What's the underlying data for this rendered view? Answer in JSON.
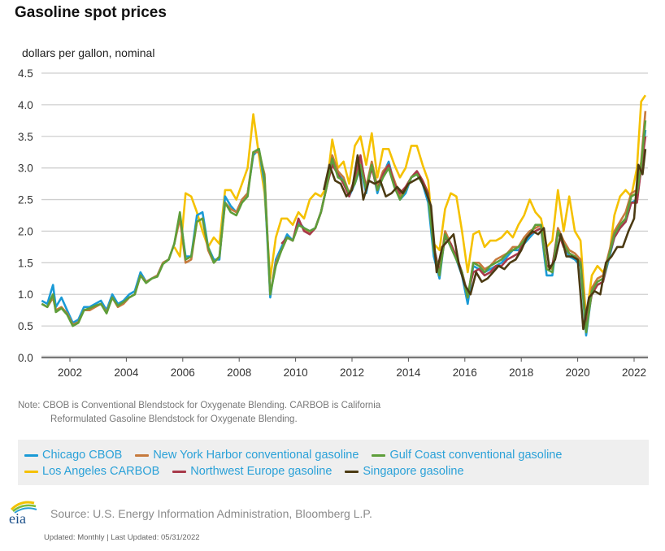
{
  "header": {
    "title": "Gasoline spot prices",
    "units": "dollars per gallon, nominal"
  },
  "note": {
    "line1": "Note: CBOB is Conventional Blendstock for Oxygenate Blending. CARBOB is California",
    "line2": "Reformulated Gasoline Blendstock for Oxygenate Blending."
  },
  "footer": {
    "logo": "eia-logo",
    "source": "Source: U.S. Energy Information Administration, Bloomberg L.P.",
    "updated": "Updated: Monthly | Last Updated: 05/31/2022"
  },
  "chart_data": {
    "type": "line",
    "title": "Gasoline spot prices",
    "xlabel": "",
    "ylabel": "dollars per gallon, nominal",
    "xlim": [
      2001.0,
      2022.45
    ],
    "ylim": [
      0,
      4.5
    ],
    "yticks": [
      "0.0",
      "0.5",
      "1.0",
      "1.5",
      "2.0",
      "2.5",
      "3.0",
      "3.5",
      "4.0",
      "4.5"
    ],
    "xticks": [
      "2002",
      "2004",
      "2006",
      "2008",
      "2010",
      "2012",
      "2014",
      "2016",
      "2018",
      "2020",
      "2022"
    ],
    "grid": true,
    "legend_position": "bottom",
    "series": [
      {
        "name": "Chicago CBOB",
        "color": "#1a9ad6",
        "x": [
          2001.0,
          2001.2,
          2001.4,
          2001.5,
          2001.7,
          2001.9,
          2002.1,
          2002.3,
          2002.5,
          2002.7,
          2002.9,
          2003.1,
          2003.3,
          2003.5,
          2003.7,
          2003.9,
          2004.1,
          2004.3,
          2004.5,
          2004.7,
          2004.9,
          2005.1,
          2005.3,
          2005.5,
          2005.7,
          2005.9,
          2006.1,
          2006.3,
          2006.5,
          2006.7,
          2006.9,
          2007.1,
          2007.3,
          2007.5,
          2007.7,
          2007.9,
          2008.1,
          2008.3,
          2008.5,
          2008.7,
          2008.9,
          2009.1,
          2009.3,
          2009.5,
          2009.7,
          2009.9,
          2010.1,
          2010.3,
          2010.5,
          2010.7,
          2010.9,
          2011.1,
          2011.3,
          2011.5,
          2011.7,
          2011.9,
          2012.1,
          2012.3,
          2012.5,
          2012.7,
          2012.9,
          2013.1,
          2013.3,
          2013.5,
          2013.7,
          2013.9,
          2014.1,
          2014.3,
          2014.5,
          2014.7,
          2014.9,
          2015.1,
          2015.3,
          2015.5,
          2015.7,
          2015.9,
          2016.1,
          2016.3,
          2016.5,
          2016.7,
          2016.9,
          2017.1,
          2017.3,
          2017.5,
          2017.7,
          2017.9,
          2018.1,
          2018.3,
          2018.5,
          2018.7,
          2018.9,
          2019.1,
          2019.3,
          2019.5,
          2019.7,
          2019.9,
          2020.1,
          2020.3,
          2020.5,
          2020.7,
          2020.9,
          2021.1,
          2021.3,
          2021.5,
          2021.7,
          2021.9,
          2022.1,
          2022.25,
          2022.4
        ],
        "values": [
          0.9,
          0.85,
          1.15,
          0.8,
          0.95,
          0.75,
          0.55,
          0.6,
          0.8,
          0.8,
          0.85,
          0.9,
          0.75,
          1.0,
          0.85,
          0.9,
          1.0,
          1.05,
          1.35,
          1.2,
          1.25,
          1.3,
          1.5,
          1.55,
          1.8,
          2.25,
          1.6,
          1.6,
          2.25,
          2.3,
          1.75,
          1.55,
          1.55,
          2.55,
          2.4,
          2.3,
          2.5,
          2.6,
          3.2,
          3.3,
          2.75,
          0.95,
          1.55,
          1.75,
          1.95,
          1.85,
          2.15,
          2.05,
          2.0,
          2.05,
          2.3,
          2.7,
          3.1,
          2.9,
          2.8,
          2.55,
          2.75,
          3.0,
          2.6,
          3.05,
          2.6,
          2.9,
          3.1,
          2.75,
          2.5,
          2.6,
          2.85,
          2.9,
          2.75,
          2.45,
          1.6,
          1.25,
          1.95,
          1.75,
          1.55,
          1.3,
          0.85,
          1.45,
          1.4,
          1.35,
          1.4,
          1.45,
          1.5,
          1.6,
          1.7,
          1.7,
          1.8,
          1.9,
          2.0,
          2.05,
          1.3,
          1.3,
          2.0,
          1.8,
          1.6,
          1.55,
          1.45,
          0.35,
          1.05,
          1.15,
          1.2,
          1.55,
          1.9,
          2.05,
          2.15,
          2.45,
          2.5,
          3.0,
          3.6
        ]
      },
      {
        "name": "New York Harbor conventional gasoline",
        "color": "#c67a3d",
        "x": [
          2001.0,
          2001.2,
          2001.4,
          2001.5,
          2001.7,
          2001.9,
          2002.1,
          2002.3,
          2002.5,
          2002.7,
          2002.9,
          2003.1,
          2003.3,
          2003.5,
          2003.7,
          2003.9,
          2004.1,
          2004.3,
          2004.5,
          2004.7,
          2004.9,
          2005.1,
          2005.3,
          2005.5,
          2005.7,
          2005.9,
          2006.1,
          2006.3,
          2006.5,
          2006.7,
          2006.9,
          2007.1,
          2007.3,
          2007.5,
          2007.7,
          2007.9,
          2008.1,
          2008.3,
          2008.5,
          2008.7,
          2008.9,
          2009.1,
          2009.3,
          2009.5,
          2009.7,
          2009.9,
          2010.1,
          2010.3,
          2010.5,
          2010.7,
          2010.9,
          2011.1,
          2011.3,
          2011.5,
          2011.7,
          2011.9,
          2012.1,
          2012.3,
          2012.5,
          2012.7,
          2012.9,
          2013.1,
          2013.3,
          2013.5,
          2013.7,
          2013.9,
          2014.1,
          2014.3,
          2014.5,
          2014.7,
          2014.9,
          2015.1,
          2015.3,
          2015.5,
          2015.7,
          2015.9,
          2016.1,
          2016.3,
          2016.5,
          2016.7,
          2016.9,
          2017.1,
          2017.3,
          2017.5,
          2017.7,
          2017.9,
          2018.1,
          2018.3,
          2018.5,
          2018.7,
          2018.9,
          2019.1,
          2019.3,
          2019.5,
          2019.7,
          2019.9,
          2020.1,
          2020.3,
          2020.5,
          2020.7,
          2020.9,
          2021.1,
          2021.3,
          2021.5,
          2021.7,
          2021.9,
          2022.1,
          2022.25,
          2022.4
        ],
        "values": [
          0.85,
          0.8,
          0.95,
          0.75,
          0.8,
          0.7,
          0.52,
          0.56,
          0.75,
          0.75,
          0.8,
          0.85,
          0.72,
          0.95,
          0.8,
          0.85,
          0.95,
          1.0,
          1.3,
          1.2,
          1.25,
          1.3,
          1.5,
          1.55,
          1.8,
          2.2,
          1.5,
          1.55,
          2.15,
          2.2,
          1.7,
          1.5,
          1.6,
          2.45,
          2.35,
          2.3,
          2.5,
          2.6,
          3.25,
          3.25,
          2.9,
          1.0,
          1.5,
          1.7,
          1.9,
          1.85,
          2.1,
          2.05,
          1.95,
          2.05,
          2.3,
          2.7,
          3.2,
          2.95,
          2.85,
          2.6,
          2.8,
          3.15,
          2.7,
          3.1,
          2.7,
          2.95,
          3.05,
          2.8,
          2.55,
          2.65,
          2.85,
          2.95,
          2.8,
          2.6,
          1.75,
          1.35,
          2.0,
          1.8,
          1.6,
          1.35,
          0.95,
          1.5,
          1.5,
          1.4,
          1.45,
          1.55,
          1.6,
          1.65,
          1.75,
          1.75,
          1.9,
          2.0,
          2.05,
          2.1,
          1.45,
          1.4,
          2.05,
          1.85,
          1.7,
          1.65,
          1.55,
          0.45,
          1.1,
          1.25,
          1.3,
          1.65,
          2.0,
          2.15,
          2.3,
          2.6,
          2.65,
          3.1,
          3.9
        ]
      },
      {
        "name": "Gulf Coast conventional gasoline",
        "color": "#5e9e3a",
        "x": [
          2001.0,
          2001.2,
          2001.4,
          2001.5,
          2001.7,
          2001.9,
          2002.1,
          2002.3,
          2002.5,
          2002.7,
          2002.9,
          2003.1,
          2003.3,
          2003.5,
          2003.7,
          2003.9,
          2004.1,
          2004.3,
          2004.5,
          2004.7,
          2004.9,
          2005.1,
          2005.3,
          2005.5,
          2005.7,
          2005.9,
          2006.1,
          2006.3,
          2006.5,
          2006.7,
          2006.9,
          2007.1,
          2007.3,
          2007.5,
          2007.7,
          2007.9,
          2008.1,
          2008.3,
          2008.5,
          2008.7,
          2008.9,
          2009.1,
          2009.3,
          2009.5,
          2009.7,
          2009.9,
          2010.1,
          2010.3,
          2010.5,
          2010.7,
          2010.9,
          2011.1,
          2011.3,
          2011.5,
          2011.7,
          2011.9,
          2012.1,
          2012.3,
          2012.5,
          2012.7,
          2012.9,
          2013.1,
          2013.3,
          2013.5,
          2013.7,
          2013.9,
          2014.1,
          2014.3,
          2014.5,
          2014.7,
          2014.9,
          2015.1,
          2015.3,
          2015.5,
          2015.7,
          2015.9,
          2016.1,
          2016.3,
          2016.5,
          2016.7,
          2016.9,
          2017.1,
          2017.3,
          2017.5,
          2017.7,
          2017.9,
          2018.1,
          2018.3,
          2018.5,
          2018.7,
          2018.9,
          2019.1,
          2019.3,
          2019.5,
          2019.7,
          2019.9,
          2020.1,
          2020.3,
          2020.5,
          2020.7,
          2020.9,
          2021.1,
          2021.3,
          2021.5,
          2021.7,
          2021.9,
          2022.1,
          2022.25,
          2022.4
        ],
        "values": [
          0.85,
          0.8,
          1.0,
          0.72,
          0.78,
          0.68,
          0.5,
          0.55,
          0.75,
          0.78,
          0.82,
          0.85,
          0.7,
          0.95,
          0.82,
          0.88,
          0.95,
          1.0,
          1.3,
          1.18,
          1.25,
          1.28,
          1.48,
          1.55,
          1.8,
          2.3,
          1.55,
          1.6,
          2.15,
          2.2,
          1.75,
          1.5,
          1.6,
          2.45,
          2.3,
          2.25,
          2.45,
          2.55,
          3.25,
          3.3,
          2.85,
          1.0,
          1.45,
          1.7,
          1.9,
          1.85,
          2.1,
          2.05,
          2.0,
          2.05,
          2.3,
          2.7,
          3.15,
          2.85,
          2.8,
          2.6,
          2.75,
          3.05,
          2.65,
          3.05,
          2.65,
          2.85,
          3.0,
          2.7,
          2.5,
          2.65,
          2.85,
          2.9,
          2.75,
          2.55,
          1.7,
          1.3,
          1.95,
          1.75,
          1.55,
          1.35,
          0.95,
          1.5,
          1.45,
          1.35,
          1.45,
          1.5,
          1.55,
          1.65,
          1.7,
          1.75,
          1.85,
          1.95,
          2.1,
          2.1,
          1.4,
          1.35,
          2.0,
          1.8,
          1.65,
          1.6,
          1.5,
          0.4,
          1.05,
          1.2,
          1.25,
          1.6,
          1.95,
          2.1,
          2.2,
          2.55,
          2.6,
          3.05,
          3.75
        ]
      },
      {
        "name": "Los Angeles CARBOB",
        "color": "#f5c100",
        "x": [
          2005.7,
          2005.9,
          2006.1,
          2006.3,
          2006.5,
          2006.7,
          2006.9,
          2007.1,
          2007.3,
          2007.5,
          2007.7,
          2007.9,
          2008.1,
          2008.3,
          2008.5,
          2008.7,
          2008.9,
          2009.1,
          2009.3,
          2009.5,
          2009.7,
          2009.9,
          2010.1,
          2010.3,
          2010.5,
          2010.7,
          2010.9,
          2011.1,
          2011.3,
          2011.5,
          2011.7,
          2011.9,
          2012.1,
          2012.3,
          2012.5,
          2012.7,
          2012.9,
          2013.1,
          2013.3,
          2013.5,
          2013.7,
          2013.9,
          2014.1,
          2014.3,
          2014.5,
          2014.7,
          2014.9,
          2015.1,
          2015.3,
          2015.5,
          2015.7,
          2015.9,
          2016.1,
          2016.3,
          2016.5,
          2016.7,
          2016.9,
          2017.1,
          2017.3,
          2017.5,
          2017.7,
          2017.9,
          2018.1,
          2018.3,
          2018.5,
          2018.7,
          2018.9,
          2019.1,
          2019.3,
          2019.5,
          2019.7,
          2019.9,
          2020.1,
          2020.3,
          2020.5,
          2020.7,
          2020.9,
          2021.1,
          2021.3,
          2021.5,
          2021.7,
          2021.9,
          2022.1,
          2022.25,
          2022.4
        ],
        "values": [
          1.75,
          1.6,
          2.6,
          2.55,
          2.3,
          2.0,
          1.75,
          1.9,
          1.8,
          2.65,
          2.65,
          2.5,
          2.75,
          3.0,
          3.85,
          3.2,
          2.6,
          1.25,
          1.9,
          2.2,
          2.2,
          2.1,
          2.3,
          2.2,
          2.5,
          2.6,
          2.55,
          2.7,
          3.45,
          3.0,
          3.1,
          2.75,
          3.35,
          3.5,
          3.05,
          3.55,
          2.85,
          3.3,
          3.3,
          3.05,
          2.85,
          3.0,
          3.35,
          3.35,
          3.05,
          2.8,
          1.8,
          1.7,
          2.35,
          2.6,
          2.55,
          2.0,
          1.35,
          1.95,
          2.0,
          1.75,
          1.85,
          1.85,
          1.9,
          2.0,
          1.9,
          2.1,
          2.25,
          2.5,
          2.3,
          2.2,
          1.75,
          1.85,
          2.65,
          2.0,
          2.55,
          2.0,
          1.85,
          0.6,
          1.3,
          1.45,
          1.35,
          1.55,
          2.25,
          2.55,
          2.65,
          2.55,
          3.0,
          4.05,
          4.15
        ]
      },
      {
        "name": "Northwest Europe gasoline",
        "color": "#a83a4a",
        "x": [
          2009.5,
          2009.7,
          2009.9,
          2010.1,
          2010.3,
          2010.5,
          2010.7,
          2010.9,
          2011.1,
          2011.3,
          2011.5,
          2011.7,
          2011.9,
          2012.1,
          2012.3,
          2012.5,
          2012.7,
          2012.9,
          2013.1,
          2013.3,
          2013.5,
          2013.7,
          2013.9,
          2014.1,
          2014.3,
          2014.5,
          2014.7,
          2014.9,
          2015.1,
          2015.3,
          2015.5,
          2015.7,
          2015.9,
          2016.1,
          2016.3,
          2016.5,
          2016.7,
          2016.9,
          2017.1,
          2017.3,
          2017.5,
          2017.7,
          2017.9,
          2018.1,
          2018.3,
          2018.5,
          2018.7,
          2018.9,
          2019.1,
          2019.3,
          2019.5,
          2019.7,
          2019.9,
          2020.1,
          2020.3,
          2020.5,
          2020.7,
          2020.9,
          2021.1,
          2021.3,
          2021.5,
          2021.7,
          2021.9,
          2022.1,
          2022.25,
          2022.4
        ],
        "values": [
          1.8,
          1.9,
          1.85,
          2.2,
          2.0,
          1.95,
          2.05,
          2.3,
          2.7,
          3.05,
          2.9,
          2.75,
          2.55,
          2.85,
          3.2,
          2.65,
          3.0,
          2.65,
          2.9,
          3.05,
          2.75,
          2.6,
          2.7,
          2.85,
          2.95,
          2.8,
          2.6,
          1.75,
          1.35,
          1.9,
          1.8,
          1.6,
          1.35,
          1.0,
          1.35,
          1.4,
          1.3,
          1.35,
          1.45,
          1.45,
          1.55,
          1.6,
          1.65,
          1.85,
          1.95,
          2.0,
          2.05,
          1.45,
          1.45,
          2.0,
          1.75,
          1.65,
          1.6,
          1.5,
          0.5,
          1.0,
          1.15,
          1.2,
          1.6,
          1.9,
          2.05,
          2.15,
          2.45,
          2.45,
          3.0,
          3.5
        ]
      },
      {
        "name": "Singapore gasoline",
        "color": "#4b3a12",
        "x": [
          2011.0,
          2011.2,
          2011.4,
          2011.6,
          2011.8,
          2012.0,
          2012.2,
          2012.4,
          2012.6,
          2012.8,
          2013.0,
          2013.2,
          2013.4,
          2013.6,
          2013.8,
          2014.0,
          2014.2,
          2014.4,
          2014.6,
          2014.8,
          2015.0,
          2015.2,
          2015.4,
          2015.6,
          2015.8,
          2016.0,
          2016.2,
          2016.4,
          2016.6,
          2016.8,
          2017.0,
          2017.2,
          2017.4,
          2017.6,
          2017.8,
          2018.0,
          2018.2,
          2018.4,
          2018.6,
          2018.8,
          2019.0,
          2019.2,
          2019.4,
          2019.6,
          2019.8,
          2020.0,
          2020.2,
          2020.4,
          2020.6,
          2020.8,
          2021.0,
          2021.2,
          2021.4,
          2021.6,
          2021.8,
          2022.0,
          2022.15,
          2022.3,
          2022.4
        ],
        "values": [
          2.65,
          3.05,
          2.8,
          2.75,
          2.55,
          2.65,
          3.2,
          2.5,
          2.8,
          2.75,
          2.8,
          2.55,
          2.6,
          2.7,
          2.6,
          2.75,
          2.8,
          2.85,
          2.65,
          2.4,
          1.35,
          1.75,
          1.85,
          1.95,
          1.45,
          1.15,
          1.0,
          1.35,
          1.2,
          1.25,
          1.35,
          1.45,
          1.4,
          1.5,
          1.55,
          1.7,
          1.9,
          2.0,
          1.95,
          2.05,
          1.4,
          1.55,
          1.95,
          1.6,
          1.6,
          1.55,
          0.45,
          0.95,
          1.05,
          1.0,
          1.5,
          1.6,
          1.75,
          1.75,
          2.0,
          2.2,
          3.05,
          2.9,
          3.3
        ]
      }
    ]
  }
}
